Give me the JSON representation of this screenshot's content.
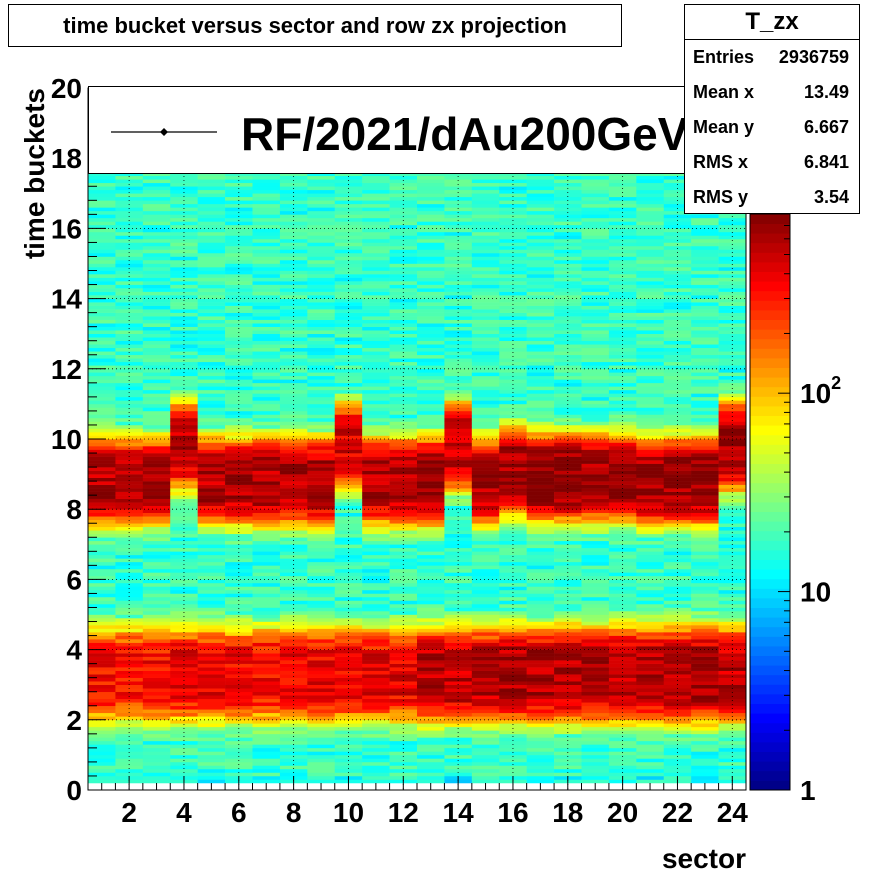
{
  "chart_data": {
    "type": "heatmap",
    "title": "time bucket versus sector and row zx projection",
    "xlabel": "sector",
    "ylabel": "time buckets",
    "xlim": [
      0.5,
      24.5
    ],
    "ylim": [
      0,
      20
    ],
    "x_ticks": [
      "2",
      "4",
      "6",
      "8",
      "10",
      "12",
      "14",
      "16",
      "18",
      "20",
      "22",
      "24"
    ],
    "y_ticks": [
      "0",
      "2",
      "4",
      "6",
      "8",
      "10",
      "12",
      "14",
      "16",
      "18",
      "20"
    ],
    "grid": true,
    "z_scale": "log",
    "zlim": [
      1,
      800
    ],
    "z_ticks": [
      {
        "value": 1,
        "label": "1"
      },
      {
        "value": 10,
        "label": "10"
      },
      {
        "value": 100,
        "label": "10",
        "sup": "2"
      }
    ],
    "colormap": [
      "#00007f",
      "#0000ff",
      "#007fff",
      "#00ffff",
      "#7fff7f",
      "#ffff00",
      "#ff7f00",
      "#ff0000",
      "#7f0000"
    ],
    "legend": {
      "label": "RF/2021/dAu200GeV",
      "position": "top"
    },
    "upper_band_peak_center": [
      8.8,
      8.8,
      8.8,
      9.8,
      8.8,
      8.8,
      8.8,
      8.8,
      8.8,
      9.8,
      8.8,
      8.8,
      8.8,
      9.8,
      8.8,
      9.1,
      8.9,
      8.9,
      8.9,
      8.9,
      8.8,
      8.8,
      8.8,
      9.8
    ],
    "upper_band_peak_counts": [
      600,
      600,
      550,
      550,
      600,
      600,
      600,
      600,
      600,
      450,
      600,
      600,
      700,
      550,
      600,
      700,
      750,
      750,
      700,
      650,
      650,
      700,
      700,
      700
    ],
    "lower_band_peak_center": [
      3.3,
      3.3,
      3.3,
      3.3,
      3.3,
      3.3,
      3.3,
      3.3,
      3.3,
      3.3,
      3.3,
      3.3,
      3.3,
      3.3,
      3.3,
      3.3,
      3.3,
      3.3,
      3.3,
      3.3,
      3.3,
      3.3,
      3.3,
      3.3
    ],
    "lower_band_peak_counts": [
      350,
      350,
      350,
      400,
      400,
      380,
      380,
      400,
      400,
      400,
      400,
      420,
      550,
      550,
      550,
      650,
      600,
      600,
      600,
      600,
      600,
      600,
      650,
      550
    ],
    "background_counts": 18
  },
  "stats": {
    "name": "T_zx",
    "rows": [
      {
        "label": "Entries",
        "value": "2936759"
      },
      {
        "label": "Mean x",
        "value": "13.49"
      },
      {
        "label": "Mean y",
        "value": "6.667"
      },
      {
        "label": "RMS x",
        "value": "6.841"
      },
      {
        "label": "RMS y",
        "value": "3.54"
      }
    ]
  }
}
